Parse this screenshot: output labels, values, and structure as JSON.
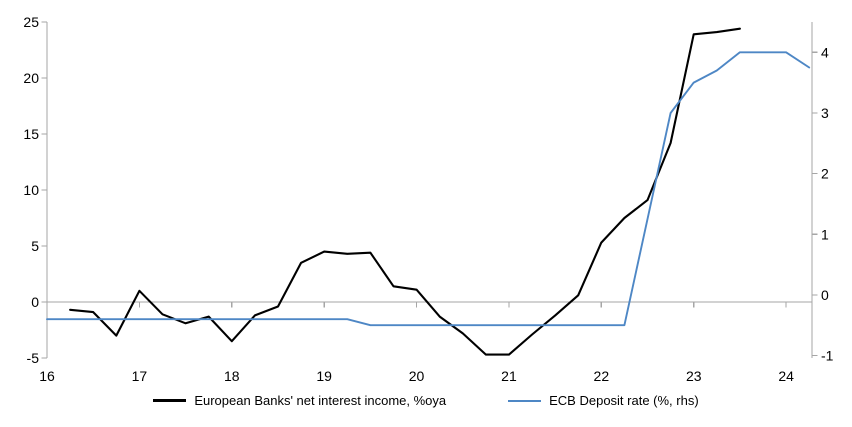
{
  "chart_data": {
    "type": "line",
    "grid": "zero-baseline-only",
    "legend_position": "bottom",
    "x_axis": {
      "ticks": [
        16,
        17,
        18,
        19,
        20,
        21,
        22,
        23,
        24
      ],
      "range": [
        16,
        24.28
      ]
    },
    "left_axis": {
      "ticks": [
        25,
        20,
        15,
        10,
        5,
        0,
        -5
      ],
      "range": [
        -5,
        25
      ]
    },
    "right_axis": {
      "ticks": [
        4,
        3,
        2,
        1,
        0,
        -1
      ],
      "range": [
        -1.04,
        4.5
      ]
    },
    "series": [
      {
        "name": "European Banks' net interest income, %oya",
        "axis": "left",
        "color": "#000000",
        "x": [
          16.25,
          16.5,
          16.75,
          17,
          17.25,
          17.5,
          17.75,
          18,
          18.25,
          18.5,
          18.75,
          19,
          19.25,
          19.5,
          19.75,
          20,
          20.25,
          20.5,
          20.75,
          21,
          21.25,
          21.5,
          21.75,
          22,
          22.25,
          22.5,
          22.75,
          23,
          23.25,
          23.5
        ],
        "values": [
          -0.7,
          -0.9,
          -3.0,
          1.0,
          -1.1,
          -1.9,
          -1.3,
          -3.5,
          -1.2,
          -0.4,
          3.5,
          4.5,
          4.3,
          4.4,
          1.4,
          1.1,
          -1.3,
          -2.8,
          -4.7,
          -4.7,
          -2.9,
          -1.2,
          0.6,
          5.3,
          7.5,
          9.1,
          14.2,
          23.9,
          24.1,
          24.4
        ]
      },
      {
        "name": "ECB Deposit rate (%, rhs)",
        "axis": "right",
        "color": "#4e87c5",
        "x": [
          16,
          16.25,
          16.5,
          16.75,
          17,
          17.25,
          17.5,
          17.75,
          18,
          18.25,
          18.5,
          18.75,
          19,
          19.25,
          19.5,
          19.75,
          20,
          20.25,
          20.5,
          20.75,
          21,
          21.25,
          21.5,
          21.75,
          22,
          22.25,
          22.5,
          22.75,
          23,
          23.25,
          23.5,
          23.75,
          24,
          24.25
        ],
        "values": [
          -0.4,
          -0.4,
          -0.4,
          -0.4,
          -0.4,
          -0.4,
          -0.4,
          -0.4,
          -0.4,
          -0.4,
          -0.4,
          -0.4,
          -0.4,
          -0.4,
          -0.5,
          -0.5,
          -0.5,
          -0.5,
          -0.5,
          -0.5,
          -0.5,
          -0.5,
          -0.5,
          -0.5,
          -0.5,
          -0.5,
          1.25,
          3.0,
          3.5,
          3.7,
          4.0,
          4.0,
          4.0,
          3.75
        ]
      }
    ]
  },
  "colors": {
    "axis_line": "#a6a6a6",
    "text": "#000000",
    "background": "#ffffff"
  }
}
